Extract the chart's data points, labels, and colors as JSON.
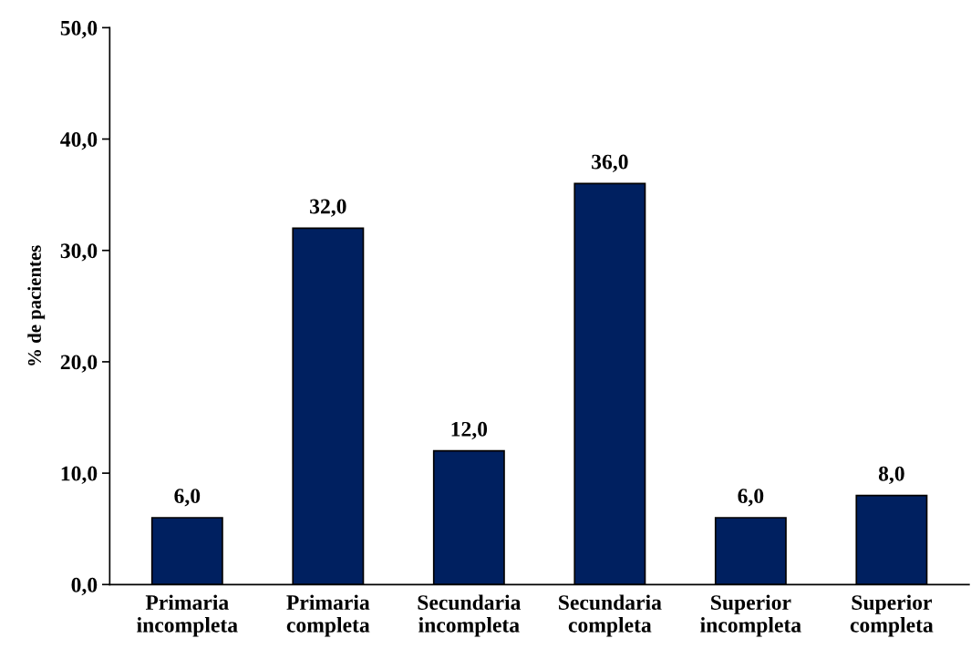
{
  "chart_data": {
    "type": "bar",
    "ylabel": "% de pacientes",
    "categories": [
      "Primaria\nincompleta",
      "Primaria\ncompleta",
      "Secundaria\nincompleta",
      "Secundaria\ncompleta",
      "Superior\nincompleta",
      "Superior\ncompleta"
    ],
    "values": [
      6.0,
      32.0,
      12.0,
      36.0,
      6.0,
      8.0
    ],
    "value_labels": [
      "6,0",
      "32,0",
      "12,0",
      "36,0",
      "6,0",
      "8,0"
    ],
    "color": "#002060",
    "ylim": [
      0,
      50
    ],
    "yticks": [
      {
        "value": 0,
        "label": "0,0"
      },
      {
        "value": 10,
        "label": "10,0"
      },
      {
        "value": 20,
        "label": "20,0"
      },
      {
        "value": 30,
        "label": "30,0"
      },
      {
        "value": 40,
        "label": "40,0"
      },
      {
        "value": 50,
        "label": "50,0"
      }
    ],
    "grid": false,
    "legend": false
  }
}
